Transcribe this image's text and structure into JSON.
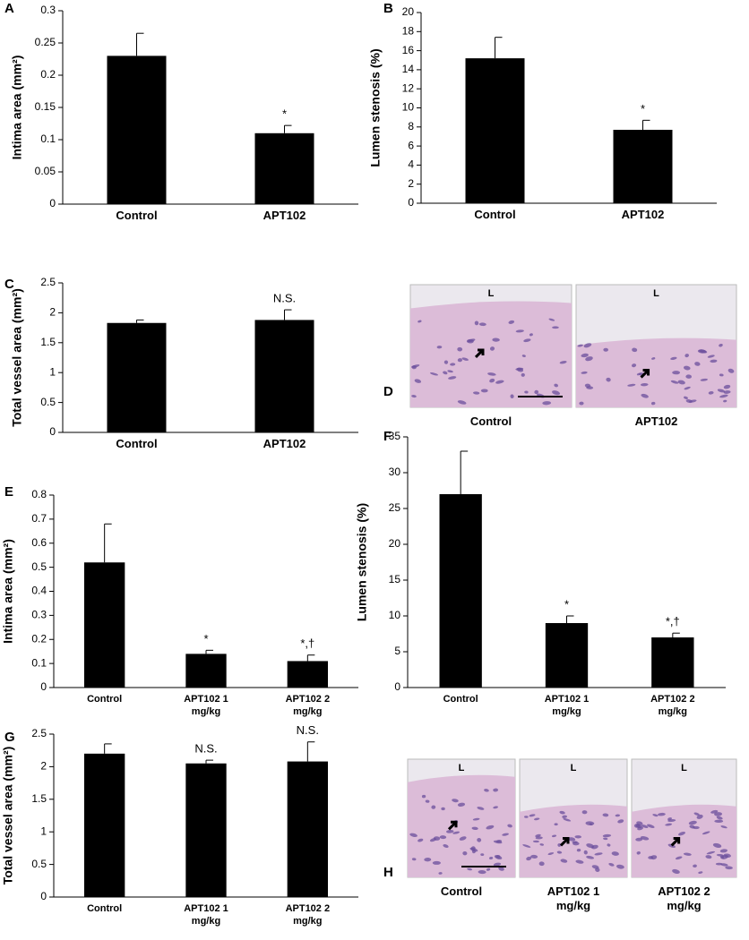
{
  "chart_data": [
    {
      "type": "bar",
      "panel": "A",
      "ylabel": "Intima area (mm²)",
      "categories": [
        "Control",
        "APT102"
      ],
      "values": [
        0.23,
        0.11
      ],
      "errors": [
        0.035,
        0.012
      ],
      "annotations": [
        null,
        "*"
      ],
      "color": "#000000",
      "ylim": [
        0,
        0.3
      ],
      "yticks": [
        0,
        0.05,
        0.1,
        0.15,
        0.2,
        0.25,
        0.3
      ]
    },
    {
      "type": "bar",
      "panel": "B",
      "ylabel": "Lumen stenosis (%)",
      "categories": [
        "Control",
        "APT102"
      ],
      "values": [
        15.2,
        7.7
      ],
      "errors": [
        2.2,
        1.0
      ],
      "annotations": [
        null,
        "*"
      ],
      "color": "#000000",
      "ylim": [
        0,
        20
      ],
      "yticks": [
        0,
        2,
        4,
        6,
        8,
        10,
        12,
        14,
        16,
        18,
        20
      ]
    },
    {
      "type": "bar",
      "panel": "C",
      "ylabel": "Total vessel area (mm²)",
      "categories": [
        "Control",
        "APT102"
      ],
      "values": [
        1.83,
        1.88
      ],
      "errors": [
        0.05,
        0.17
      ],
      "annotations": [
        null,
        "N.S."
      ],
      "color": "#000000",
      "ylim": [
        0,
        2.5
      ],
      "yticks": [
        0,
        0.5,
        1,
        1.5,
        2,
        2.5
      ]
    },
    {
      "type": "bar",
      "panel": "E",
      "ylabel": "Intima area (mm²)",
      "categories": [
        "Control",
        "APT102 1 mg/kg",
        "APT102 2 mg/kg"
      ],
      "values": [
        0.52,
        0.14,
        0.11
      ],
      "errors": [
        0.16,
        0.015,
        0.025
      ],
      "annotations": [
        null,
        "*",
        "*,†"
      ],
      "color": "#000000",
      "ylim": [
        0,
        0.8
      ],
      "yticks": [
        0,
        0.1,
        0.2,
        0.3,
        0.4,
        0.5,
        0.6,
        0.7,
        0.8
      ]
    },
    {
      "type": "bar",
      "panel": "F",
      "ylabel": "Lumen stenosis (%)",
      "categories": [
        "Control",
        "APT102 1 mg/kg",
        "APT102 2 mg/kg"
      ],
      "values": [
        27,
        9,
        7
      ],
      "errors": [
        6,
        1,
        0.6
      ],
      "annotations": [
        null,
        "*",
        "*,†"
      ],
      "color": "#000000",
      "ylim": [
        0,
        35
      ],
      "yticks": [
        0,
        5,
        10,
        15,
        20,
        25,
        30,
        35
      ]
    },
    {
      "type": "bar",
      "panel": "G",
      "ylabel": "Total vessel area (mm²)",
      "categories": [
        "Control",
        "APT102 1 mg/kg",
        "APT102 2 mg/kg"
      ],
      "values": [
        2.2,
        2.05,
        2.08
      ],
      "errors": [
        0.15,
        0.05,
        0.3
      ],
      "annotations": [
        null,
        "N.S.",
        "N.S."
      ],
      "color": "#000000",
      "ylim": [
        0,
        2.5
      ],
      "yticks": [
        0,
        0.5,
        1,
        1.5,
        2,
        2.5
      ]
    }
  ],
  "micrographs": [
    {
      "panel": "D",
      "items": [
        {
          "caption": "Control",
          "label": "L"
        },
        {
          "caption": "APT102",
          "label": "L"
        }
      ]
    },
    {
      "panel": "H",
      "items": [
        {
          "caption": "Control",
          "label": "L"
        },
        {
          "caption": "APT102 1 mg/kg",
          "label": "L"
        },
        {
          "caption": "APT102 2 mg/kg",
          "label": "L"
        }
      ]
    }
  ]
}
